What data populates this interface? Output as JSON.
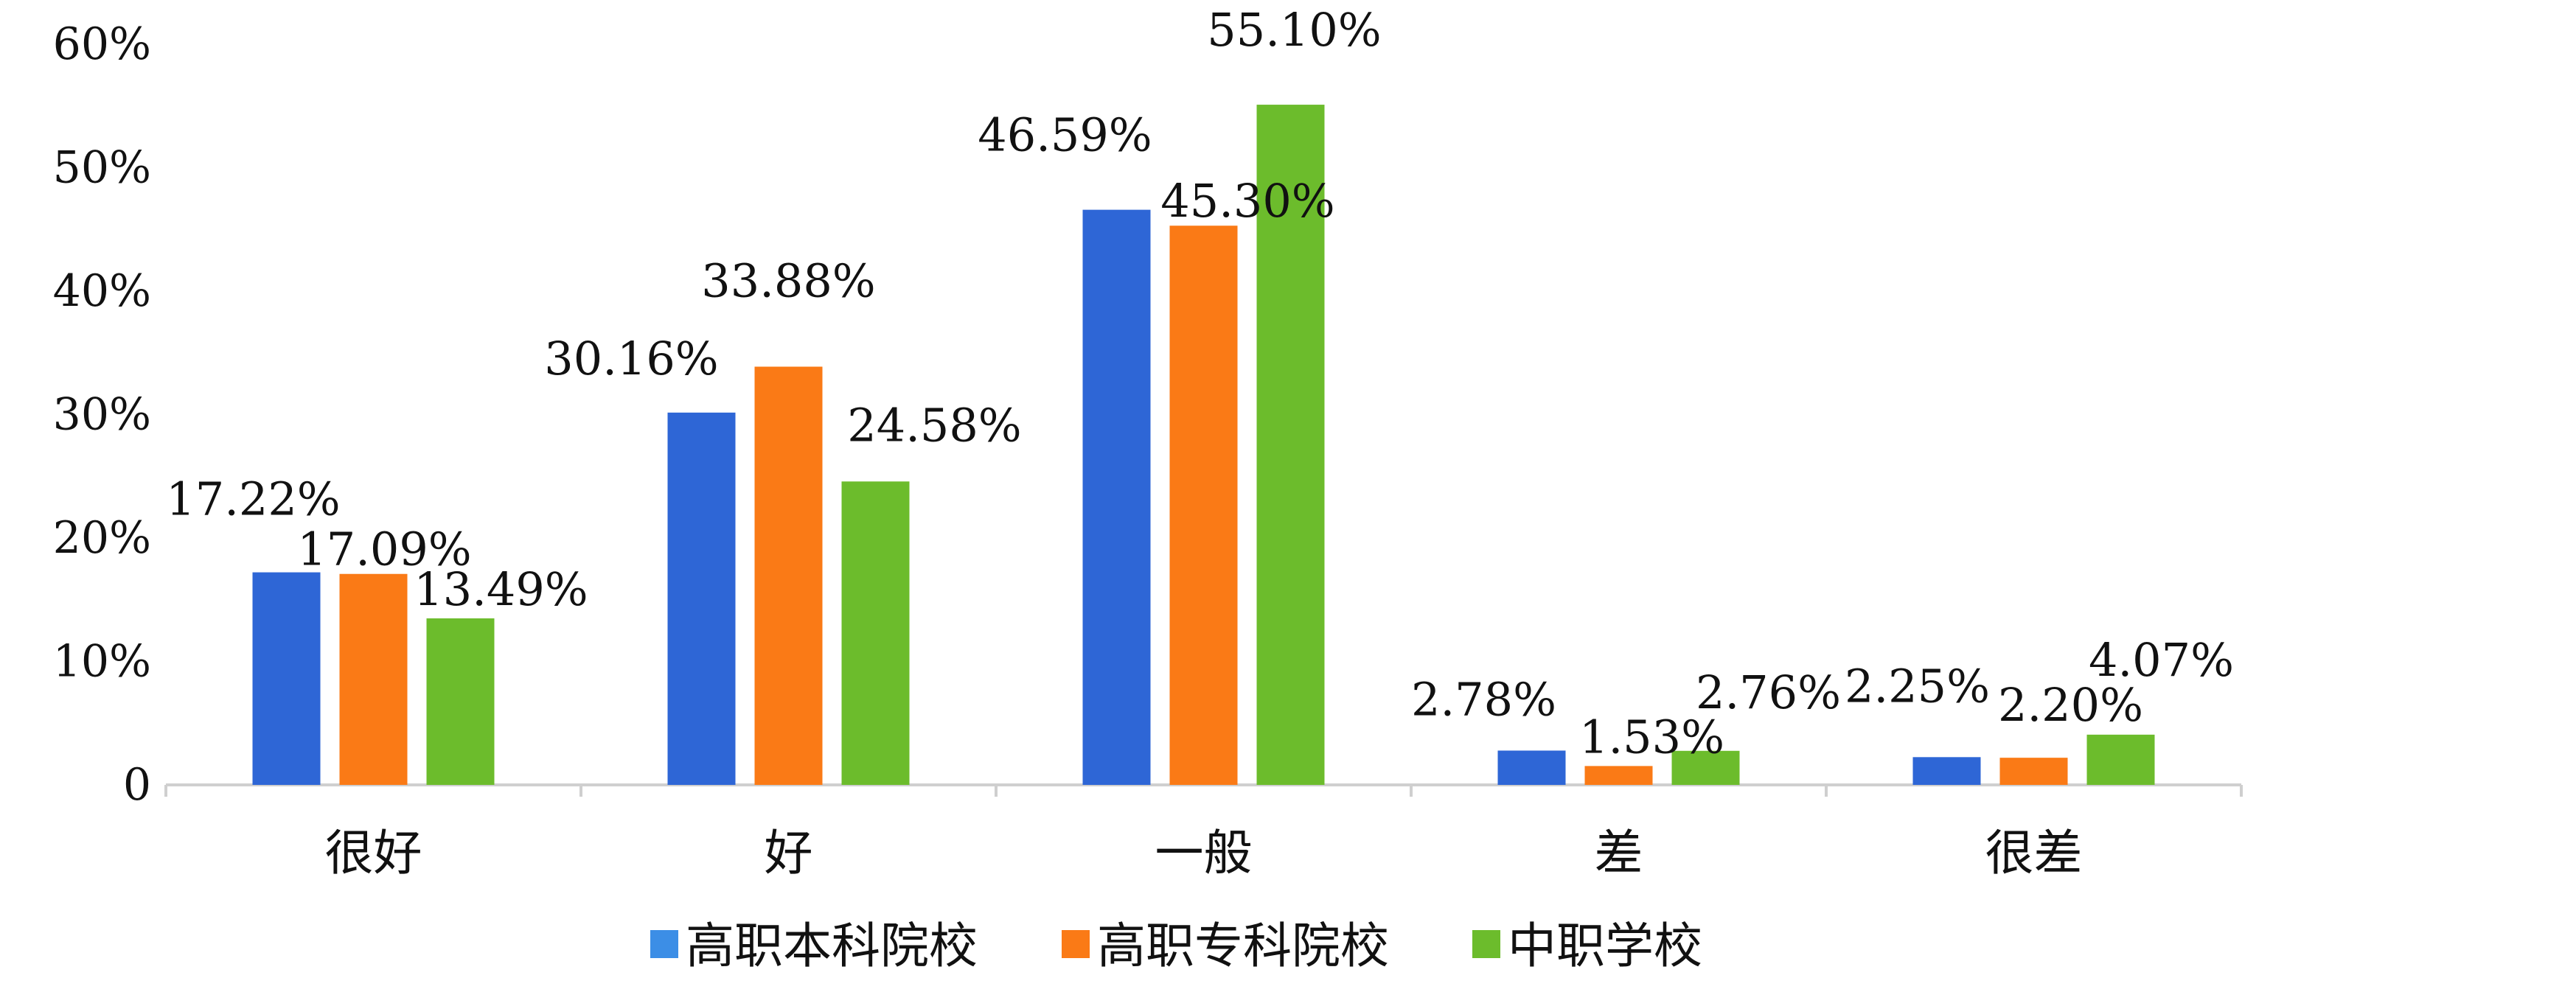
{
  "chart_data": {
    "type": "bar",
    "categories": [
      "很好",
      "好",
      "一般",
      "差",
      "很差"
    ],
    "series": [
      {
        "name": "高职本科院校",
        "values": [
          17.22,
          30.16,
          46.59,
          2.78,
          2.25
        ],
        "color": "#2e66d6",
        "legend_color": "#3c8ee6"
      },
      {
        "name": "高职专科院校",
        "values": [
          17.09,
          33.88,
          45.3,
          1.53,
          2.2
        ],
        "color": "#fa7a16"
      },
      {
        "name": "中职学校",
        "values": [
          13.49,
          24.58,
          55.1,
          2.76,
          4.07
        ],
        "color": "#6cbc2c"
      }
    ],
    "data_labels": [
      [
        "17.22%",
        "30.16%",
        "46.59%",
        "2.78%",
        "2.25%"
      ],
      [
        "17.09%",
        "33.88%",
        "45.30%",
        "1.53%",
        "2.20%"
      ],
      [
        "13.49%",
        "24.58%",
        "55.10%",
        "2.76%",
        "4.07%"
      ]
    ],
    "y_ticks": [
      {
        "value": 0,
        "label": "0"
      },
      {
        "value": 10,
        "label": "10%"
      },
      {
        "value": 20,
        "label": "20%"
      },
      {
        "value": 30,
        "label": "30%"
      },
      {
        "value": 40,
        "label": "40%"
      },
      {
        "value": 50,
        "label": "50%"
      },
      {
        "value": 60,
        "label": "60%"
      }
    ],
    "ylim": [
      0,
      60
    ],
    "title": "",
    "xlabel": "",
    "ylabel": "",
    "grid": false,
    "legend_position": "bottom-center"
  }
}
